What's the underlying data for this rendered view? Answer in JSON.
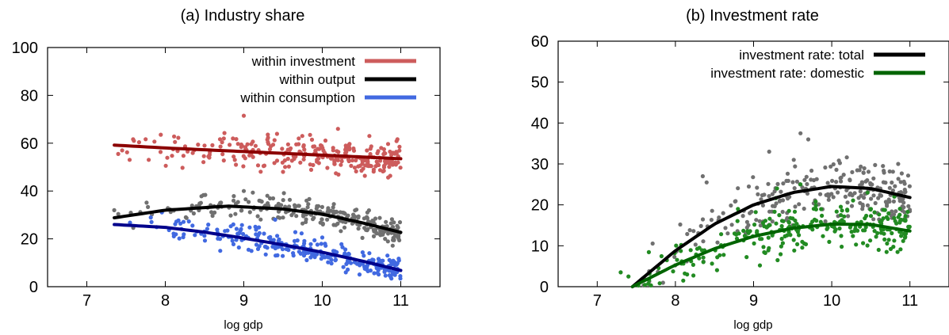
{
  "chart_data": [
    {
      "type": "scatter",
      "title": "(a) Industry share",
      "xlabel": "log gdp",
      "ylabel": "",
      "xlim": [
        6.5,
        11.5
      ],
      "ylim": [
        0,
        100
      ],
      "xticks": [
        7,
        8,
        9,
        10,
        11
      ],
      "yticks": [
        0,
        20,
        40,
        60,
        80,
        100
      ],
      "legend_position": "top-right",
      "series": [
        {
          "name": "within investment",
          "point_color": "#cd5c5c",
          "fit_color": "#8b0000",
          "x_range": [
            7.35,
            11.0
          ],
          "fit": [
            [
              7.35,
              59.2
            ],
            [
              8.0,
              58.0
            ],
            [
              9.0,
              56.5
            ],
            [
              10.0,
              55.0
            ],
            [
              11.0,
              53.5
            ]
          ],
          "spread": 3.5,
          "points": [
            [
              7.4,
              55.5
            ],
            [
              7.45,
              57
            ],
            [
              7.6,
              61
            ],
            [
              8.1,
              57.5
            ],
            [
              8.5,
              59
            ],
            [
              8.9,
              51
            ],
            [
              9.0,
              71.5
            ],
            [
              9.3,
              61.5
            ],
            [
              9.5,
              48
            ],
            [
              9.7,
              62
            ],
            [
              10.2,
              66
            ],
            [
              10.3,
              59
            ],
            [
              10.6,
              63
            ],
            [
              10.9,
              56
            ],
            [
              10.5,
              48.5
            ]
          ]
        },
        {
          "name": "within output",
          "point_color": "#707070",
          "fit_color": "#000000",
          "x_range": [
            7.35,
            11.0
          ],
          "fit": [
            [
              7.35,
              28.8
            ],
            [
              8.0,
              32.0
            ],
            [
              8.8,
              33.7
            ],
            [
              9.5,
              32.5
            ],
            [
              10.0,
              30.3
            ],
            [
              10.5,
              26.8
            ],
            [
              11.0,
              22.7
            ]
          ],
          "spread": 2.5,
          "points": [
            [
              7.35,
              32
            ],
            [
              9.0,
              40
            ],
            [
              9.3,
              38
            ],
            [
              9.8,
              36
            ],
            [
              10.9,
              19.5
            ],
            [
              10.8,
              20
            ]
          ]
        },
        {
          "name": "within consumption",
          "point_color": "#4169e1",
          "fit_color": "#00008b",
          "x_range": [
            7.35,
            11.0
          ],
          "fit": [
            [
              7.35,
              26.0
            ],
            [
              8.0,
              24.8
            ],
            [
              8.5,
              22.8
            ],
            [
              9.0,
              20.3
            ],
            [
              9.5,
              17.5
            ],
            [
              10.0,
              14.4
            ],
            [
              10.5,
              10.8
            ],
            [
              11.0,
              6.8
            ]
          ],
          "spread": 2.5,
          "points": [
            [
              8.7,
              15
            ],
            [
              9.4,
              28
            ],
            [
              10.3,
              6
            ],
            [
              10.6,
              14
            ]
          ]
        }
      ]
    },
    {
      "type": "scatter",
      "title": "(b) Investment rate",
      "xlabel": "log gdp",
      "ylabel": "",
      "xlim": [
        6.5,
        11.5
      ],
      "ylim": [
        0,
        60
      ],
      "xticks": [
        7,
        8,
        9,
        10,
        11
      ],
      "yticks": [
        0,
        10,
        20,
        30,
        40,
        50,
        60
      ],
      "legend_position": "top-right",
      "series": [
        {
          "name": "investment rate: total",
          "point_color": "#707070",
          "fit_color": "#000000",
          "x_range": [
            7.4,
            11.0
          ],
          "fit": [
            [
              7.45,
              0.0
            ],
            [
              8.0,
              8.8
            ],
            [
              8.5,
              15.3
            ],
            [
              9.0,
              20.0
            ],
            [
              9.5,
              23.0
            ],
            [
              10.0,
              24.5
            ],
            [
              10.5,
              24.0
            ],
            [
              11.0,
              21.8
            ]
          ],
          "spread": 3.5,
          "points": [
            [
              8.35,
              27
            ],
            [
              8.4,
              25.5
            ],
            [
              9.6,
              37.5
            ],
            [
              9.7,
              36
            ],
            [
              9.2,
              33
            ],
            [
              10.85,
              30
            ],
            [
              9.5,
              15
            ],
            [
              8.9,
              13
            ]
          ]
        },
        {
          "name": "investment rate: domestic",
          "point_color": "#228b22",
          "fit_color": "#006400",
          "x_range": [
            7.3,
            11.0
          ],
          "fit": [
            [
              7.45,
              0.0
            ],
            [
              8.0,
              5.3
            ],
            [
              8.5,
              9.3
            ],
            [
              9.0,
              12.3
            ],
            [
              9.5,
              14.3
            ],
            [
              10.0,
              15.3
            ],
            [
              10.5,
              15.2
            ],
            [
              11.0,
              13.6
            ]
          ],
          "spread": 2.8,
          "points": [
            [
              7.3,
              3.5
            ],
            [
              7.4,
              2.5
            ],
            [
              8.1,
              1.5
            ],
            [
              8.15,
              3
            ],
            [
              9.3,
              24
            ],
            [
              9.6,
              25
            ],
            [
              10.6,
              9
            ],
            [
              10.8,
              22
            ],
            [
              8.8,
              19
            ]
          ]
        }
      ]
    }
  ]
}
